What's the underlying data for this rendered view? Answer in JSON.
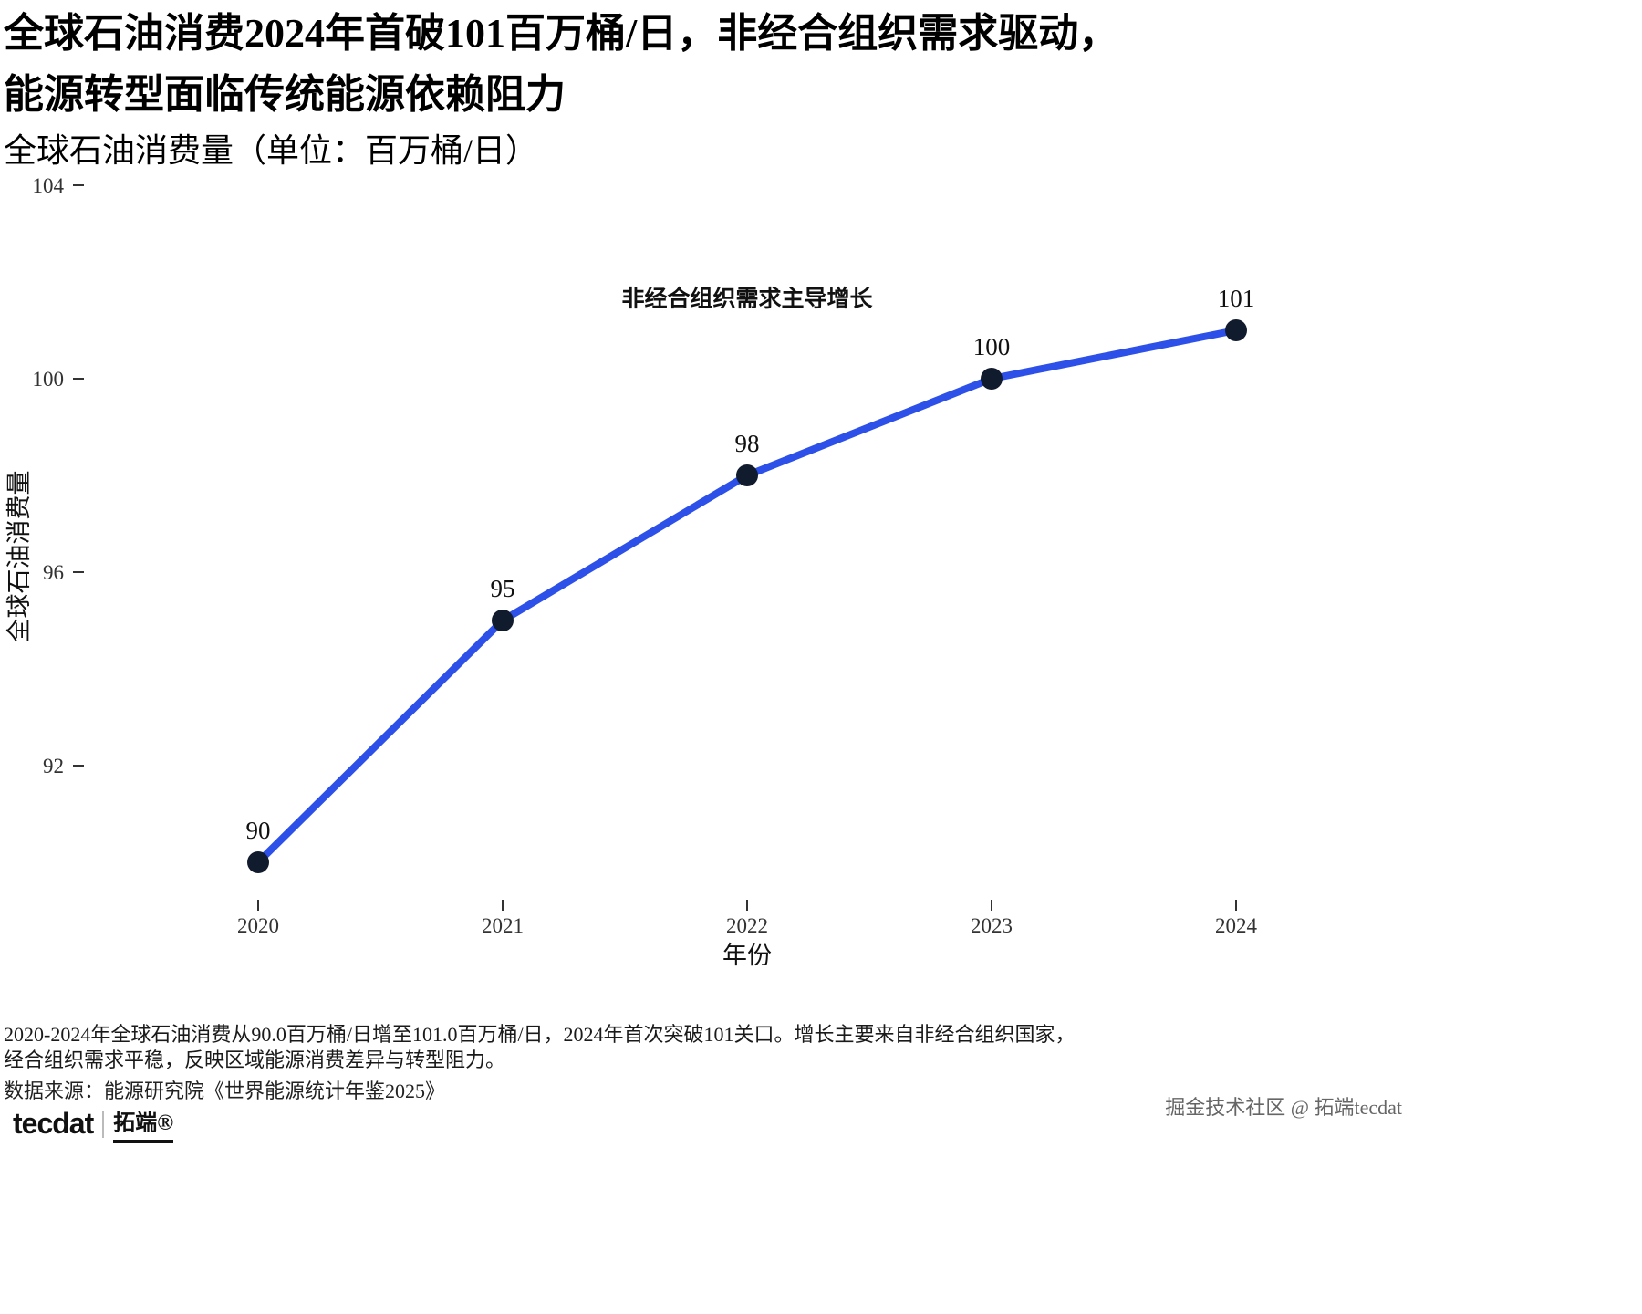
{
  "page": {
    "title_line1": "全球石油消费2024年首破101百万桶/日，非经合组织需求驱动，",
    "title_line2": "能源转型面临传统能源依赖阻力",
    "subtitle": "全球石油消费量（单位：百万桶/日）",
    "footer_line1": "2020-2024年全球石油消费从90.0百万桶/日增至101.0百万桶/日，2024年首次突破101关口。增长主要来自非经合组织国家，",
    "footer_line2": "经合组织需求平稳，反映区域能源消费差异与转型阻力。",
    "source": "数据来源：能源研究院《世界能源统计年鉴2025》",
    "logo_text": "tecdat",
    "logo_suffix": "拓端®",
    "watermark": "掘金技术社区 @ 拓端tecdat"
  },
  "chart_data": {
    "type": "line",
    "title": "全球石油消费2024年首破101百万桶/日，非经合组织需求驱动，能源转型面临传统能源依赖阻力",
    "subtitle": "全球石油消费量（单位：百万桶/日）",
    "x": [
      2020,
      2021,
      2022,
      2023,
      2024
    ],
    "series": [
      {
        "name": "全球石油消费量",
        "values": [
          90,
          95,
          98,
          100,
          101
        ]
      }
    ],
    "point_labels": [
      "90",
      "95",
      "98",
      "100",
      "101"
    ],
    "annotation": "非经合组织需求主导增长",
    "annotation_at": [
      2022,
      101.5
    ],
    "xlabel": "年份",
    "ylabel": "全球石油消费量",
    "yticks": [
      92,
      96,
      100,
      104
    ],
    "ylim": [
      89.5,
      104
    ],
    "grid": false,
    "legend": "none",
    "line_color": "#2d50e8",
    "point_color": "#101b2d",
    "tick_color": "#333333",
    "label_color": "#111111"
  }
}
